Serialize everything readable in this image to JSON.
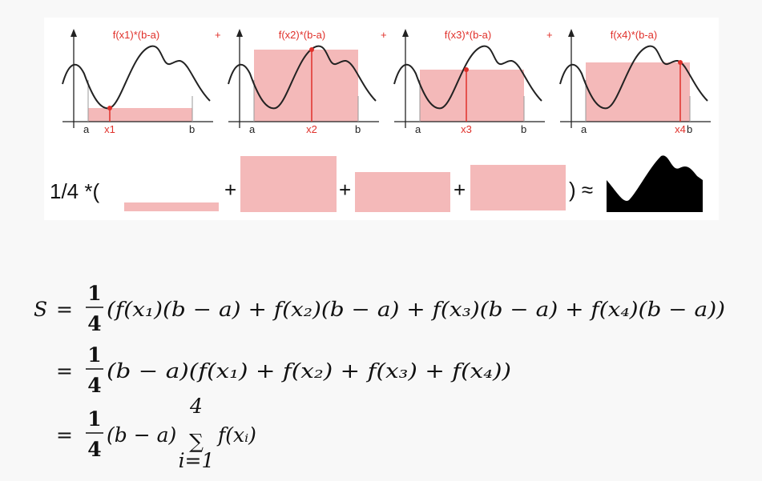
{
  "panels": [
    {
      "label": "f(x1)*(b-a)",
      "a": "a",
      "x": "x1",
      "b": "b"
    },
    {
      "label": "f(x2)*(b-a)",
      "a": "a",
      "x": "x2",
      "b": "b"
    },
    {
      "label": "f(x3)*(b-a)",
      "a": "a",
      "x": "x3",
      "b": "b"
    },
    {
      "label": "f(x4)*(b-a)",
      "a": "a",
      "x": "x4",
      "b": "b"
    }
  ],
  "panel_plus": "+",
  "sum_row": {
    "prefix": "1/4 *(",
    "plus": "+",
    "suffix": ") ≈"
  },
  "equations": [
    {
      "lhs": "S",
      "eq": "=",
      "num": "1",
      "den": "4",
      "body": "(f(x₁)(b − a) + f(x₂)(b − a) + f(x₃)(b − a) + f(x₄)(b − a))"
    },
    {
      "eq": "=",
      "num": "1",
      "den": "4",
      "body": "(b − a)(f(x₁) + f(x₂) + f(x₃) + f(x₄))"
    },
    {
      "eq": "=",
      "num": "1",
      "den": "4",
      "body": "(b − a)",
      "sum": "∑",
      "upper": "4",
      "lower": "i=1",
      "term": "f(xᵢ)"
    }
  ]
}
